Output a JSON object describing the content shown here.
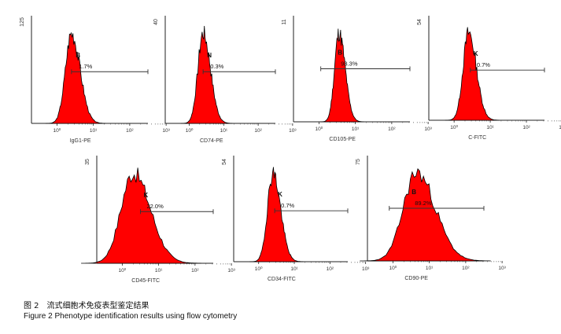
{
  "caption": {
    "chinese": "图 2　流式细胞术免疫表型鉴定结果",
    "english": "Figure 2    Phenotype identification results using flow cytometry"
  },
  "chart_data": [
    {
      "type": "area",
      "xlabel": "IgG1-PE",
      "y_axis_max_label": "125",
      "gate_letter": "B",
      "gate_percent": "1.7%",
      "x_scale": "log",
      "xlim": [
        1,
        1000
      ],
      "x_ticks": [
        "10⁰",
        "10¹",
        "10²",
        "10³"
      ],
      "peak_at_decade": 0.4,
      "width_decades": 0.55,
      "gate_start_decade": 0.4,
      "fill_color": "#ff0000"
    },
    {
      "type": "area",
      "xlabel": "CD74-PE",
      "y_axis_max_label": "40",
      "gate_letter": "N",
      "gate_percent": "0.3%",
      "x_scale": "log",
      "xlim": [
        1,
        1000
      ],
      "x_ticks": [
        "10⁰",
        "10¹",
        "10²",
        "10³"
      ],
      "peak_at_decade": 0.4,
      "width_decades": 0.5,
      "gate_start_decade": 0.4,
      "fill_color": "#ff0000"
    },
    {
      "type": "area",
      "xlabel": "CD105-PE",
      "y_axis_max_label": "11",
      "gate_letter": "B",
      "gate_percent": "93.3%",
      "x_scale": "log",
      "xlim": [
        1,
        1000
      ],
      "x_ticks": [
        "10⁰",
        "10¹",
        "10²",
        "10³"
      ],
      "peak_at_decade": 0.55,
      "width_decades": 0.4,
      "gate_start_decade": 0.05,
      "fill_color": "#ff0000"
    },
    {
      "type": "area",
      "xlabel": "C-FITC",
      "y_axis_max_label": "54",
      "gate_letter": "K",
      "gate_percent": "0.7%",
      "x_scale": "log",
      "xlim": [
        1,
        1000
      ],
      "x_ticks": [
        "10⁰",
        "10¹",
        "10²",
        "10³"
      ],
      "peak_at_decade": 0.4,
      "width_decades": 0.5,
      "gate_start_decade": 0.45,
      "fill_color": "#ff0000"
    },
    {
      "type": "area",
      "xlabel": "CD45-FITC",
      "y_axis_max_label": "35",
      "gate_letter": "K",
      "gate_percent": "22.0%",
      "x_scale": "log",
      "xlim": [
        1,
        1000
      ],
      "x_ticks": [
        "10⁰",
        "10¹",
        "10²",
        "10³"
      ],
      "peak_at_decade": 0.3,
      "width_decades": 1.1,
      "gate_start_decade": 0.5,
      "fill_color": "#ff0000"
    },
    {
      "type": "area",
      "xlabel": "CD34-FITC",
      "y_axis_max_label": "54",
      "gate_letter": "K",
      "gate_percent": "0.7%",
      "x_scale": "log",
      "xlim": [
        1,
        1000
      ],
      "x_ticks": [
        "10⁰",
        "10¹",
        "10²",
        "10³"
      ],
      "peak_at_decade": 0.4,
      "width_decades": 0.5,
      "gate_start_decade": 0.45,
      "fill_color": "#ff0000"
    },
    {
      "type": "area",
      "xlabel": "CD90-PE",
      "y_axis_max_label": "75",
      "gate_letter": "B",
      "gate_percent": "89.2%",
      "x_scale": "log",
      "xlim": [
        1,
        1000
      ],
      "x_ticks": [
        "10⁰",
        "10¹",
        "10²",
        "10³"
      ],
      "peak_at_decade": 0.65,
      "width_decades": 1.2,
      "gate_start_decade": -0.1,
      "fill_color": "#ff0000"
    }
  ]
}
